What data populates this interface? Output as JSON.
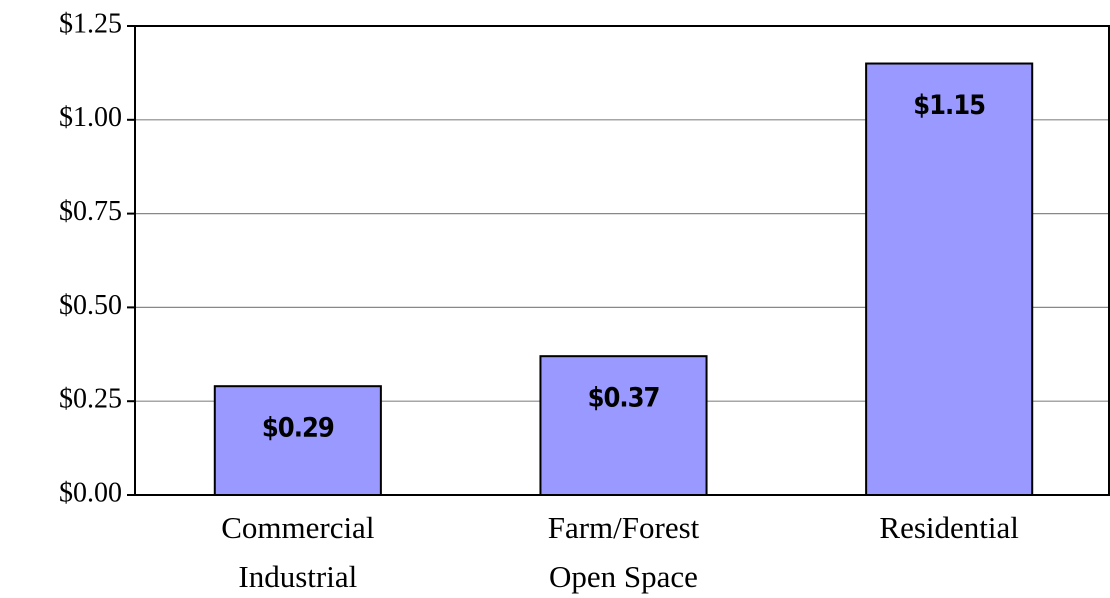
{
  "chart_data": {
    "type": "bar",
    "categories": [
      "Commercial\nIndustrial",
      "Farm/Forest\nOpen Space",
      "Residential"
    ],
    "values": [
      0.29,
      0.37,
      1.15
    ],
    "value_labels": [
      "$0.29",
      "$0.37",
      "$1.15"
    ],
    "color": "#9999ff",
    "ylim": [
      0,
      1.25
    ],
    "yticks": [
      {
        "value": 0,
        "label": "$0.00"
      },
      {
        "value": 0.25,
        "label": "$0.25"
      },
      {
        "value": 0.5,
        "label": "$0.50"
      },
      {
        "value": 0.75,
        "label": "$0.75"
      },
      {
        "value": 1,
        "label": "$1.00"
      },
      {
        "value": 1.25,
        "label": "$1.25"
      }
    ],
    "grid": true
  }
}
